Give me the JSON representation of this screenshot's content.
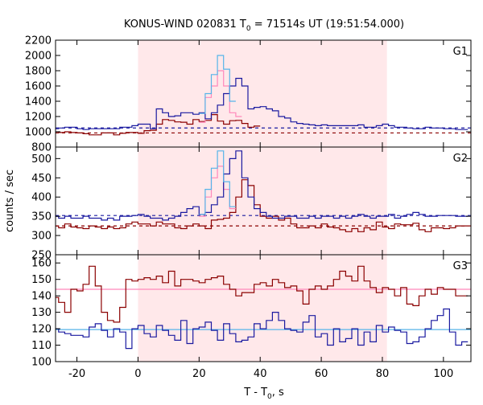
{
  "chart_data": {
    "type": "line",
    "title_main": "KONUS-WIND 020831 T",
    "title_sub": "0",
    "title_rest": " = 71514s UT (19:51:54.000)",
    "xlabel_main": "T - T",
    "xlabel_sub": "0",
    "xlabel_rest": ", s",
    "ylabel": "counts / sec",
    "xlim": [
      -27,
      109
    ],
    "xticks": [
      -20,
      0,
      20,
      40,
      60,
      80,
      100
    ],
    "highlight_interval": [
      0,
      81.5
    ],
    "colors": {
      "highlight": "#ffe8ea",
      "dark_red": "#8b0000",
      "pink": "#ff88bb",
      "dark_blue": "#1a1aa0",
      "light_blue": "#56b4e9"
    },
    "panels": [
      {
        "label": "G1",
        "ylim": [
          800,
          2200
        ],
        "yticks": [
          800,
          1000,
          1200,
          1400,
          1600,
          1800,
          2000,
          2200
        ],
        "background_lines": [
          {
            "color": "dark_blue",
            "y": 1050
          },
          {
            "color": "dark_red",
            "y": 985
          }
        ],
        "series": [
          {
            "color": "dark_red",
            "bin_width": 2,
            "x_start": -28,
            "values": [
              1000,
              990,
              1000,
              990,
              985,
              975,
              960,
              960,
              985,
              985,
              960,
              980,
              990,
              990,
              980,
              1015,
              1020,
              1100,
              1160,
              1150,
              1130,
              1125,
              1100,
              1160,
              1135,
              1150,
              1225,
              1140,
              1100,
              1145,
              1150,
              1110,
              1060,
              1075
            ]
          },
          {
            "color": "pink",
            "bin_width": 2,
            "x_start": 20,
            "values": [
              1125,
              1450,
              1600,
              1800,
              1600,
              1250,
              1200
            ]
          },
          {
            "color": "dark_blue",
            "bin_width": 2,
            "x_start": -28,
            "values": [
              1040,
              1050,
              1060,
              1060,
              1040,
              1030,
              1040,
              1040,
              1040,
              1040,
              1040,
              1060,
              1060,
              1080,
              1100,
              1100,
              1040,
              1300,
              1250,
              1200,
              1210,
              1250,
              1250,
              1230,
              1250,
              1170,
              1250,
              1350,
              1500,
              1600,
              1700,
              1600,
              1300,
              1320,
              1330,
              1300,
              1275,
              1200,
              1180,
              1130,
              1110,
              1100,
              1090,
              1080,
              1090,
              1080,
              1080,
              1080,
              1080,
              1080,
              1090,
              1060,
              1060,
              1080,
              1100,
              1080,
              1060,
              1060,
              1050,
              1040,
              1040,
              1060,
              1050,
              1050,
              1040,
              1040,
              1030,
              1030
            ]
          },
          {
            "color": "light_blue",
            "bin_width": 2,
            "x_start": 20,
            "values": [
              1240,
              1500,
              1750,
              2000,
              1820,
              1400
            ]
          }
        ]
      },
      {
        "label": "G2",
        "ylim": [
          250,
          530
        ],
        "yticks": [
          250,
          300,
          350,
          400,
          450,
          500
        ],
        "background_lines": [
          {
            "color": "dark_blue",
            "y": 352
          },
          {
            "color": "dark_red",
            "y": 325
          }
        ],
        "series": [
          {
            "color": "dark_red",
            "bin_width": 2,
            "x_start": -28,
            "values": [
              325,
              320,
              330,
              322,
              320,
              318,
              325,
              322,
              318,
              322,
              318,
              320,
              330,
              335,
              330,
              330,
              325,
              335,
              330,
              330,
              320,
              318,
              325,
              330,
              325,
              318,
              340,
              342,
              345,
              360,
              400,
              445,
              430,
              380,
              350,
              345,
              350,
              340,
              345,
              330,
              320,
              320,
              325,
              320,
              330,
              322,
              320,
              315,
              310,
              318,
              310,
              320,
              315,
              335,
              322,
              318,
              330,
              328,
              328,
              332,
              315,
              310,
              320,
              320,
              318,
              320,
              325,
              325
            ]
          },
          {
            "color": "pink",
            "bin_width": 2,
            "x_start": 20,
            "values": [
              350,
              400,
              450,
              480,
              420,
              370
            ]
          },
          {
            "color": "dark_blue",
            "bin_width": 2,
            "x_start": -28,
            "values": [
              350,
              345,
              350,
              345,
              345,
              350,
              345,
              345,
              340,
              345,
              340,
              350,
              350,
              352,
              355,
              350,
              345,
              345,
              340,
              345,
              350,
              360,
              370,
              375,
              355,
              360,
              380,
              400,
              460,
              500,
              520,
              450,
              400,
              370,
              360,
              350,
              345,
              345,
              350,
              350,
              345,
              345,
              350,
              345,
              350,
              350,
              345,
              350,
              345,
              350,
              355,
              350,
              345,
              350,
              350,
              355,
              345,
              350,
              355,
              360,
              355,
              350,
              350,
              352,
              352,
              352,
              350,
              350
            ]
          },
          {
            "color": "light_blue",
            "bin_width": 2,
            "x_start": 20,
            "values": [
              355,
              420,
              475,
              520,
              440,
              375
            ]
          }
        ]
      },
      {
        "label": "G3",
        "ylim": [
          100,
          165
        ],
        "yticks": [
          100,
          110,
          120,
          130,
          140,
          150,
          160
        ],
        "background_lines": [
          {
            "color": "pink",
            "y": 144
          },
          {
            "color": "light_blue",
            "y": 119.5
          }
        ],
        "series": [
          {
            "color": "dark_red",
            "bin_width": 2,
            "x_start": -28,
            "values": [
              139,
              136,
              130,
              144,
              143,
              147,
              158,
              146,
              130,
              125,
              124,
              133,
              150,
              149,
              150,
              151,
              150,
              152,
              148,
              155,
              146,
              150,
              150,
              149,
              148,
              150,
              151,
              152,
              147,
              144,
              140,
              142,
              142,
              147,
              148,
              146,
              150,
              148,
              145,
              146,
              143,
              135,
              144,
              146,
              144,
              146,
              150,
              155,
              152,
              149,
              158,
              149,
              145,
              142,
              145,
              144,
              140,
              145,
              135,
              134,
              140,
              144,
              141,
              145,
              144,
              144,
              140,
              140
            ]
          },
          {
            "color": "dark_blue",
            "bin_width": 2,
            "x_start": -28,
            "values": [
              120,
              118,
              117,
              116,
              116,
              115,
              121,
              123,
              119,
              115,
              120,
              118,
              108,
              120,
              122,
              117,
              115,
              122,
              119,
              116,
              113,
              125,
              111,
              120,
              121,
              124,
              119,
              113,
              123,
              117,
              112,
              113,
              115,
              123,
              120,
              125,
              130,
              125,
              120,
              119,
              118,
              124,
              128,
              115,
              117,
              110,
              120,
              112,
              114,
              120,
              110,
              118,
              112,
              122,
              118,
              121,
              119,
              118,
              111,
              112,
              115,
              120,
              125,
              128,
              132,
              118,
              110,
              112
            ]
          }
        ]
      }
    ]
  }
}
